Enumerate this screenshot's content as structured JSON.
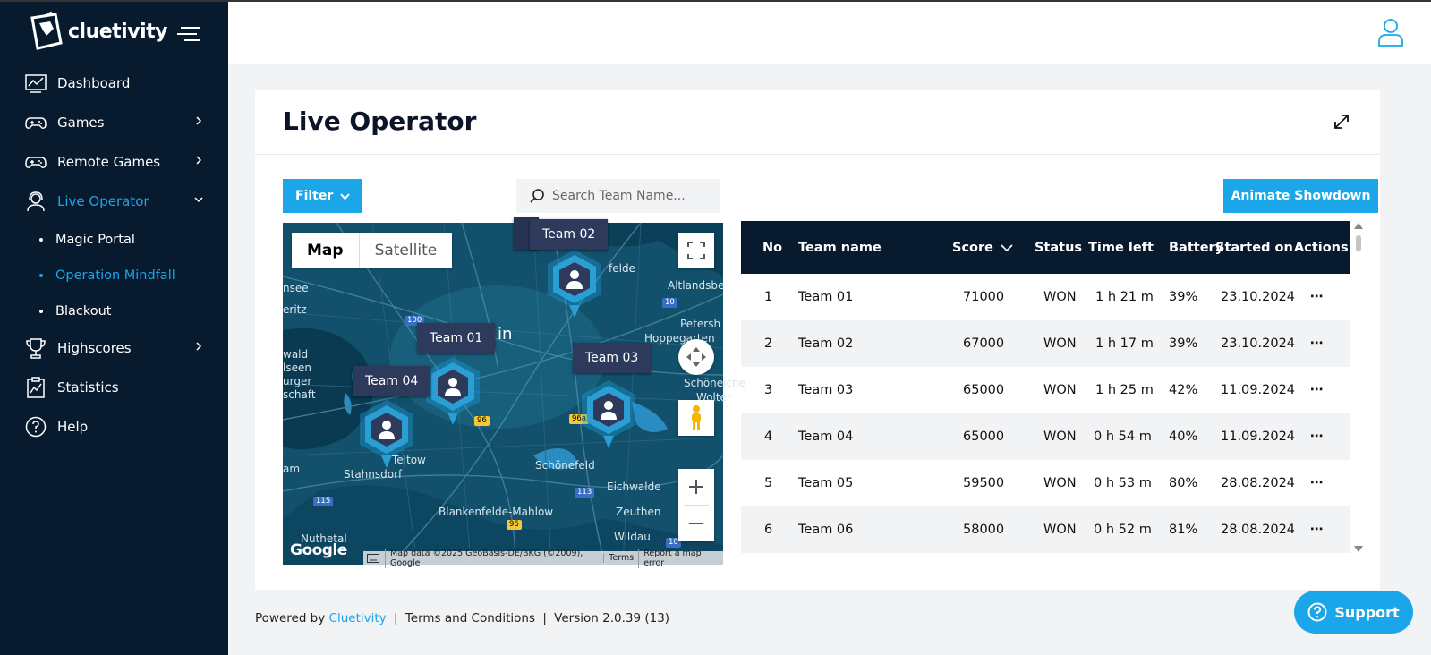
{
  "brand": {
    "name": "cluetivity"
  },
  "sidebar": {
    "items": [
      {
        "label": "Dashboard"
      },
      {
        "label": "Games"
      },
      {
        "label": "Remote Games"
      },
      {
        "label": "Live Operator"
      },
      {
        "label": "Highscores"
      },
      {
        "label": "Statistics"
      },
      {
        "label": "Help"
      }
    ],
    "sub_items": [
      {
        "label": "Magic Portal"
      },
      {
        "label": "Operation Mindfall"
      },
      {
        "label": "Blackout"
      }
    ]
  },
  "page": {
    "title": "Live Operator"
  },
  "toolbar": {
    "filter_label": "Filter",
    "search_placeholder": "Search Team Name...",
    "animate_label": "Animate Showdown"
  },
  "map": {
    "type_map": "Map",
    "type_satellite": "Satellite",
    "teams": [
      "Team 01",
      "Team 02",
      "Team 03",
      "Team 04"
    ],
    "places": [
      "Altlandsbe",
      "Petersh",
      "Hoppegarten",
      "Schöneiche",
      "Wolter",
      "Teltow",
      "Stahnsdorf",
      "Schönefeld",
      "Eichwalde",
      "Zeuthen",
      "Blankenfelde-Mahlow",
      "Wildau",
      "Nuthetal",
      "felde",
      "nsee",
      "eritz",
      "wald",
      "lseen",
      "urger",
      "schaft",
      "am",
      "in"
    ],
    "roads": [
      "100",
      "10",
      "96",
      "96a",
      "113",
      "115",
      "96",
      "10"
    ],
    "google": "Google",
    "attribution": [
      "Map data ©2025 GeoBasis-DE/BKG (©2009), Google",
      "Terms",
      "Report a map error"
    ]
  },
  "table": {
    "headers": {
      "no": "No",
      "team": "Team name",
      "score": "Score",
      "status": "Status",
      "time": "Time left",
      "battery": "Battery",
      "started": "Started on",
      "actions": "Actions"
    },
    "rows": [
      {
        "no": "1",
        "team": "Team 01",
        "score": "71000",
        "status": "WON",
        "time": "1 h 21 m",
        "battery": "39%",
        "started": "23.10.2024",
        "actions": "⋯"
      },
      {
        "no": "2",
        "team": "Team 02",
        "score": "67000",
        "status": "WON",
        "time": "1 h 17 m",
        "battery": "39%",
        "started": "23.10.2024",
        "actions": "⋯"
      },
      {
        "no": "3",
        "team": "Team 03",
        "score": "65000",
        "status": "WON",
        "time": "1 h 25 m",
        "battery": "42%",
        "started": "11.09.2024",
        "actions": "⋯"
      },
      {
        "no": "4",
        "team": "Team 04",
        "score": "65000",
        "status": "WON",
        "time": "0 h 54 m",
        "battery": "40%",
        "started": "11.09.2024",
        "actions": "⋯"
      },
      {
        "no": "5",
        "team": "Team 05",
        "score": "59500",
        "status": "WON",
        "time": "0 h 53 m",
        "battery": "80%",
        "started": "28.08.2024",
        "actions": "⋯"
      },
      {
        "no": "6",
        "team": "Team 06",
        "score": "58000",
        "status": "WON",
        "time": "0 h 52 m",
        "battery": "81%",
        "started": "28.08.2024",
        "actions": "⋯"
      }
    ]
  },
  "footer": {
    "powered": "Powered by",
    "brand_link": "Cluetivity",
    "sep1": "|",
    "terms": "Terms and Conditions",
    "sep2": "|",
    "version": "Version 2.0.39 (13)"
  },
  "support": {
    "label": "Support"
  },
  "colors": {
    "accent": "#1aa6e8",
    "sidebar": "#071a2e",
    "table_head": "#071a2e",
    "map_water": "#0f4760"
  }
}
